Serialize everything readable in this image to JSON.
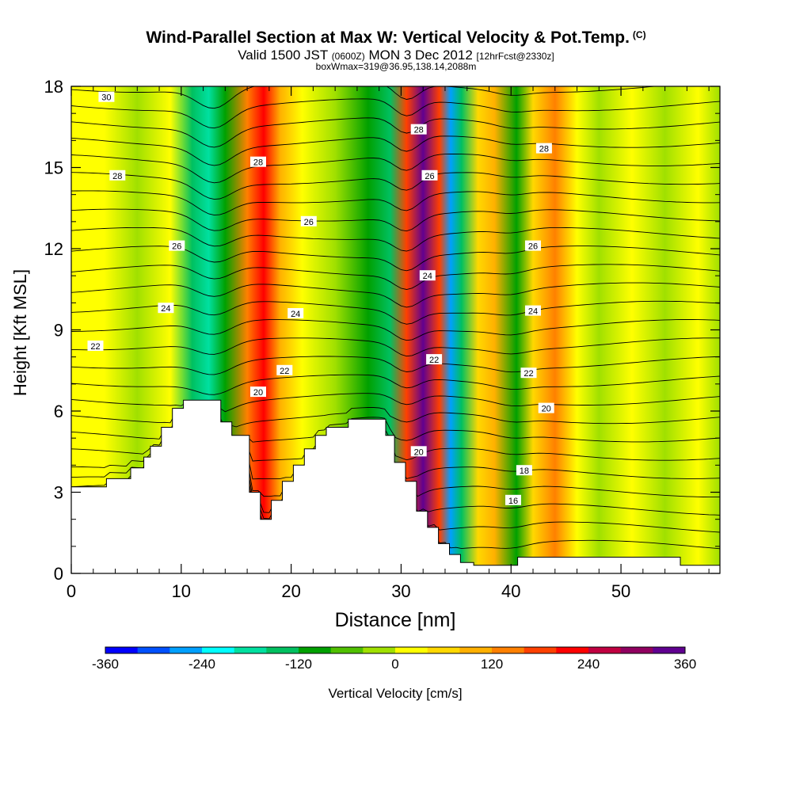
{
  "header": {
    "title": "Wind-Parallel Section at Max W: Vertical Velocity & Pot.Temp.",
    "copyright": "(C)",
    "valid_prefix": "Valid 1500 JST",
    "valid_utc": "(0600Z)",
    "valid_date": "MON 3 Dec 2012",
    "forecast": "[12hrFcst@2330z]",
    "box_info": "boxWmax=319@36.95,138.14,2088m"
  },
  "chart_data": {
    "type": "heatmap",
    "xlabel": "Distance [nm]",
    "ylabel": "Height [Kft MSL]",
    "xlim": [
      0,
      59
    ],
    "ylim": [
      0,
      18
    ],
    "x_ticks": [
      "0",
      "10",
      "20",
      "30",
      "40",
      "50"
    ],
    "y_ticks": [
      "0",
      "3",
      "6",
      "9",
      "12",
      "15",
      "18"
    ],
    "colorbar": {
      "label": "Vertical Velocity [cm/s]",
      "tick_labels": [
        "-360",
        "-240",
        "-120",
        "0",
        "120",
        "240",
        "360"
      ],
      "colors": [
        "#0000ff",
        "#0050ff",
        "#00a0ff",
        "#00ffff",
        "#00e0a0",
        "#00c060",
        "#00a000",
        "#50c000",
        "#a0e000",
        "#ffff00",
        "#ffd800",
        "#ffb000",
        "#ff8000",
        "#ff4000",
        "#ff0000",
        "#c00040",
        "#900060",
        "#600090"
      ]
    },
    "velocity_bands": [
      {
        "x": 0,
        "value": 0
      },
      {
        "x": 3,
        "value": 20
      },
      {
        "x": 6,
        "value": -15
      },
      {
        "x": 9,
        "value": 10
      },
      {
        "x": 11,
        "value": -130
      },
      {
        "x": 12.5,
        "value": -200
      },
      {
        "x": 14,
        "value": -110
      },
      {
        "x": 16,
        "value": 150
      },
      {
        "x": 17.5,
        "value": 210
      },
      {
        "x": 19,
        "value": 110
      },
      {
        "x": 21,
        "value": 20
      },
      {
        "x": 24,
        "value": -20
      },
      {
        "x": 27,
        "value": -90
      },
      {
        "x": 29,
        "value": -160
      },
      {
        "x": 30.5,
        "value": 180
      },
      {
        "x": 32,
        "value": 330
      },
      {
        "x": 33.5,
        "value": 190
      },
      {
        "x": 34.5,
        "value": -260
      },
      {
        "x": 35.5,
        "value": -150
      },
      {
        "x": 37,
        "value": 60
      },
      {
        "x": 38.5,
        "value": 110
      },
      {
        "x": 40.5,
        "value": -120
      },
      {
        "x": 42,
        "value": 40
      },
      {
        "x": 44,
        "value": 140
      },
      {
        "x": 46,
        "value": 30
      },
      {
        "x": 48,
        "value": -40
      },
      {
        "x": 51,
        "value": 20
      },
      {
        "x": 54,
        "value": -30
      },
      {
        "x": 57,
        "value": 10
      },
      {
        "x": 59,
        "value": -10
      }
    ],
    "terrain": [
      [
        0,
        3.2
      ],
      [
        3.2,
        3.2
      ],
      [
        3.2,
        3.5
      ],
      [
        5.4,
        3.5
      ],
      [
        5.4,
        3.9
      ],
      [
        6.6,
        3.9
      ],
      [
        6.6,
        4.3
      ],
      [
        7.2,
        4.3
      ],
      [
        7.2,
        4.7
      ],
      [
        8.2,
        4.7
      ],
      [
        8.2,
        5.4
      ],
      [
        9.2,
        5.4
      ],
      [
        9.2,
        6.1
      ],
      [
        10.2,
        6.1
      ],
      [
        10.2,
        6.4
      ],
      [
        13.6,
        6.4
      ],
      [
        13.6,
        5.6
      ],
      [
        14.6,
        5.6
      ],
      [
        14.6,
        5.1
      ],
      [
        16.2,
        5.1
      ],
      [
        16.2,
        3.0
      ],
      [
        17.2,
        3.0
      ],
      [
        17.2,
        2.0
      ],
      [
        18.2,
        2.0
      ],
      [
        18.2,
        2.7
      ],
      [
        19.2,
        2.7
      ],
      [
        19.2,
        3.4
      ],
      [
        20.2,
        3.4
      ],
      [
        20.2,
        4.0
      ],
      [
        21.2,
        4.0
      ],
      [
        21.2,
        4.6
      ],
      [
        22.2,
        4.6
      ],
      [
        22.2,
        5.1
      ],
      [
        23.2,
        5.1
      ],
      [
        23.2,
        5.4
      ],
      [
        25.2,
        5.4
      ],
      [
        25.2,
        5.7
      ],
      [
        28.6,
        5.7
      ],
      [
        28.6,
        5.1
      ],
      [
        29.4,
        5.1
      ],
      [
        29.4,
        4.1
      ],
      [
        30.4,
        4.1
      ],
      [
        30.4,
        3.4
      ],
      [
        31.4,
        3.4
      ],
      [
        31.4,
        2.3
      ],
      [
        32.4,
        2.3
      ],
      [
        32.4,
        1.7
      ],
      [
        33.4,
        1.7
      ],
      [
        33.4,
        1.1
      ],
      [
        34.4,
        1.1
      ],
      [
        34.4,
        0.7
      ],
      [
        35.4,
        0.7
      ],
      [
        35.4,
        0.4
      ],
      [
        36.6,
        0.4
      ],
      [
        36.6,
        0.3
      ],
      [
        40.6,
        0.3
      ],
      [
        40.6,
        0.6
      ],
      [
        41.6,
        0.6
      ],
      [
        41.6,
        0.6
      ],
      [
        55.4,
        0.6
      ],
      [
        55.4,
        0.3
      ],
      [
        59,
        0.3
      ]
    ],
    "theta_labels": [
      {
        "text": "30",
        "x": 3.2,
        "y": 17.6
      },
      {
        "text": "28",
        "x": 4.2,
        "y": 14.7
      },
      {
        "text": "26",
        "x": 9.6,
        "y": 12.1
      },
      {
        "text": "24",
        "x": 8.6,
        "y": 9.8
      },
      {
        "text": "22",
        "x": 2.2,
        "y": 8.4
      },
      {
        "text": "28",
        "x": 17.0,
        "y": 15.2
      },
      {
        "text": "26",
        "x": 21.6,
        "y": 13.0
      },
      {
        "text": "24",
        "x": 20.4,
        "y": 9.6
      },
      {
        "text": "22",
        "x": 19.4,
        "y": 7.5
      },
      {
        "text": "20",
        "x": 17.0,
        "y": 6.7
      },
      {
        "text": "28",
        "x": 31.6,
        "y": 16.4
      },
      {
        "text": "26",
        "x": 32.6,
        "y": 14.7
      },
      {
        "text": "24",
        "x": 32.4,
        "y": 11.0
      },
      {
        "text": "22",
        "x": 33.0,
        "y": 7.9
      },
      {
        "text": "20",
        "x": 31.6,
        "y": 4.5
      },
      {
        "text": "28",
        "x": 43.0,
        "y": 15.7
      },
      {
        "text": "26",
        "x": 42.0,
        "y": 12.1
      },
      {
        "text": "24",
        "x": 42.0,
        "y": 9.7
      },
      {
        "text": "22",
        "x": 41.6,
        "y": 7.4
      },
      {
        "text": "20",
        "x": 43.2,
        "y": 6.1
      },
      {
        "text": "18",
        "x": 41.2,
        "y": 3.8
      },
      {
        "text": "16",
        "x": 40.2,
        "y": 2.7
      }
    ]
  }
}
